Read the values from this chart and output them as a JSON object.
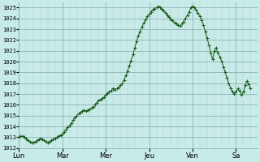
{
  "background_color": "#c8eae8",
  "line_color": "#1a5c1a",
  "marker": "+",
  "markersize": 2.5,
  "linewidth": 0.7,
  "ylim": [
    1012,
    1025.5
  ],
  "yticks": [
    1012,
    1013,
    1014,
    1015,
    1016,
    1017,
    1018,
    1019,
    1020,
    1021,
    1022,
    1023,
    1024,
    1025
  ],
  "xtick_labels": [
    "Lun",
    "Mar",
    "Mer",
    "Jeu",
    "Ven",
    "Sa"
  ],
  "grid_minor_color": "#b0d0d0",
  "grid_major_color": "#80aaaa",
  "xlim": [
    0,
    5.5
  ],
  "x_values": [
    0.0,
    0.04,
    0.08,
    0.12,
    0.17,
    0.21,
    0.25,
    0.29,
    0.33,
    0.38,
    0.42,
    0.46,
    0.5,
    0.54,
    0.58,
    0.63,
    0.67,
    0.71,
    0.75,
    0.79,
    0.83,
    0.88,
    0.92,
    0.96,
    1.0,
    1.04,
    1.08,
    1.12,
    1.17,
    1.21,
    1.25,
    1.29,
    1.33,
    1.38,
    1.42,
    1.46,
    1.5,
    1.54,
    1.58,
    1.63,
    1.67,
    1.71,
    1.75,
    1.79,
    1.83,
    1.88,
    1.92,
    1.96,
    2.0,
    2.04,
    2.08,
    2.12,
    2.17,
    2.21,
    2.25,
    2.29,
    2.33,
    2.38,
    2.42,
    2.46,
    2.5,
    2.54,
    2.58,
    2.63,
    2.67,
    2.71,
    2.75,
    2.79,
    2.83,
    2.88,
    2.92,
    2.96,
    3.0,
    3.04,
    3.08,
    3.12,
    3.17,
    3.21,
    3.25,
    3.29,
    3.33,
    3.38,
    3.42,
    3.46,
    3.5,
    3.54,
    3.58,
    3.63,
    3.67,
    3.71,
    3.75,
    3.79,
    3.83,
    3.88,
    3.92,
    3.96,
    4.0,
    4.04,
    4.08,
    4.12,
    4.17,
    4.21,
    4.25,
    4.29,
    4.33,
    4.38,
    4.42,
    4.46,
    4.5,
    4.54,
    4.58,
    4.63,
    4.67,
    4.71,
    4.75,
    4.79,
    4.83,
    4.88,
    4.92,
    4.96,
    5.0,
    5.04,
    5.08,
    5.13,
    5.17,
    5.21,
    5.25,
    5.29,
    5.33
  ],
  "y_values": [
    1013.0,
    1013.1,
    1013.1,
    1013.0,
    1012.9,
    1012.7,
    1012.6,
    1012.5,
    1012.5,
    1012.6,
    1012.7,
    1012.8,
    1012.9,
    1012.8,
    1012.7,
    1012.6,
    1012.5,
    1012.6,
    1012.7,
    1012.8,
    1012.9,
    1013.0,
    1013.1,
    1013.2,
    1013.3,
    1013.5,
    1013.7,
    1013.9,
    1014.1,
    1014.3,
    1014.6,
    1014.8,
    1015.0,
    1015.2,
    1015.3,
    1015.4,
    1015.5,
    1015.4,
    1015.5,
    1015.6,
    1015.7,
    1015.8,
    1016.0,
    1016.2,
    1016.4,
    1016.5,
    1016.6,
    1016.7,
    1016.9,
    1017.1,
    1017.2,
    1017.3,
    1017.5,
    1017.4,
    1017.5,
    1017.6,
    1017.8,
    1018.0,
    1018.3,
    1018.7,
    1019.1,
    1019.6,
    1020.1,
    1020.7,
    1021.3,
    1021.9,
    1022.4,
    1022.8,
    1023.2,
    1023.6,
    1023.9,
    1024.2,
    1024.4,
    1024.6,
    1024.8,
    1024.9,
    1025.0,
    1025.1,
    1025.0,
    1024.9,
    1024.7,
    1024.5,
    1024.3,
    1024.1,
    1023.9,
    1023.8,
    1023.6,
    1023.5,
    1023.4,
    1023.3,
    1023.5,
    1023.7,
    1024.0,
    1024.3,
    1024.6,
    1025.0,
    1025.1,
    1025.0,
    1024.8,
    1024.5,
    1024.2,
    1023.8,
    1023.4,
    1022.8,
    1022.2,
    1021.5,
    1020.8,
    1020.2,
    1021.0,
    1021.3,
    1020.8,
    1020.4,
    1020.0,
    1019.5,
    1019.0,
    1018.5,
    1018.0,
    1017.5,
    1017.2,
    1017.0,
    1017.2,
    1017.5,
    1017.3,
    1016.9,
    1017.2,
    1017.8,
    1018.2,
    1017.9,
    1017.5
  ]
}
